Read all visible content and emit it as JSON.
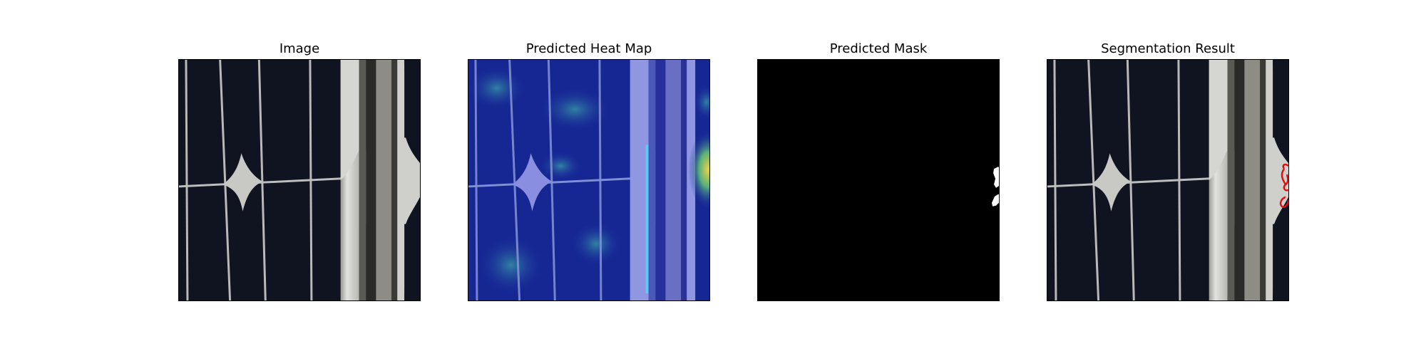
{
  "panels": [
    {
      "title": "Image",
      "kind": "image"
    },
    {
      "title": "Predicted Heat Map",
      "kind": "heatmap"
    },
    {
      "title": "Predicted Mask",
      "kind": "mask"
    },
    {
      "title": "Segmentation Result",
      "kind": "segmentation"
    }
  ],
  "colors": {
    "cell_background": "#101421",
    "busbar": "#c9c9c6",
    "frame_light": "#d8d8d4",
    "frame_dark": "#3a3a36",
    "heatmap_base": "#1d2fa0",
    "mask_background": "#000000",
    "mask_defect": "#ffffff",
    "contour": "#e01010"
  }
}
